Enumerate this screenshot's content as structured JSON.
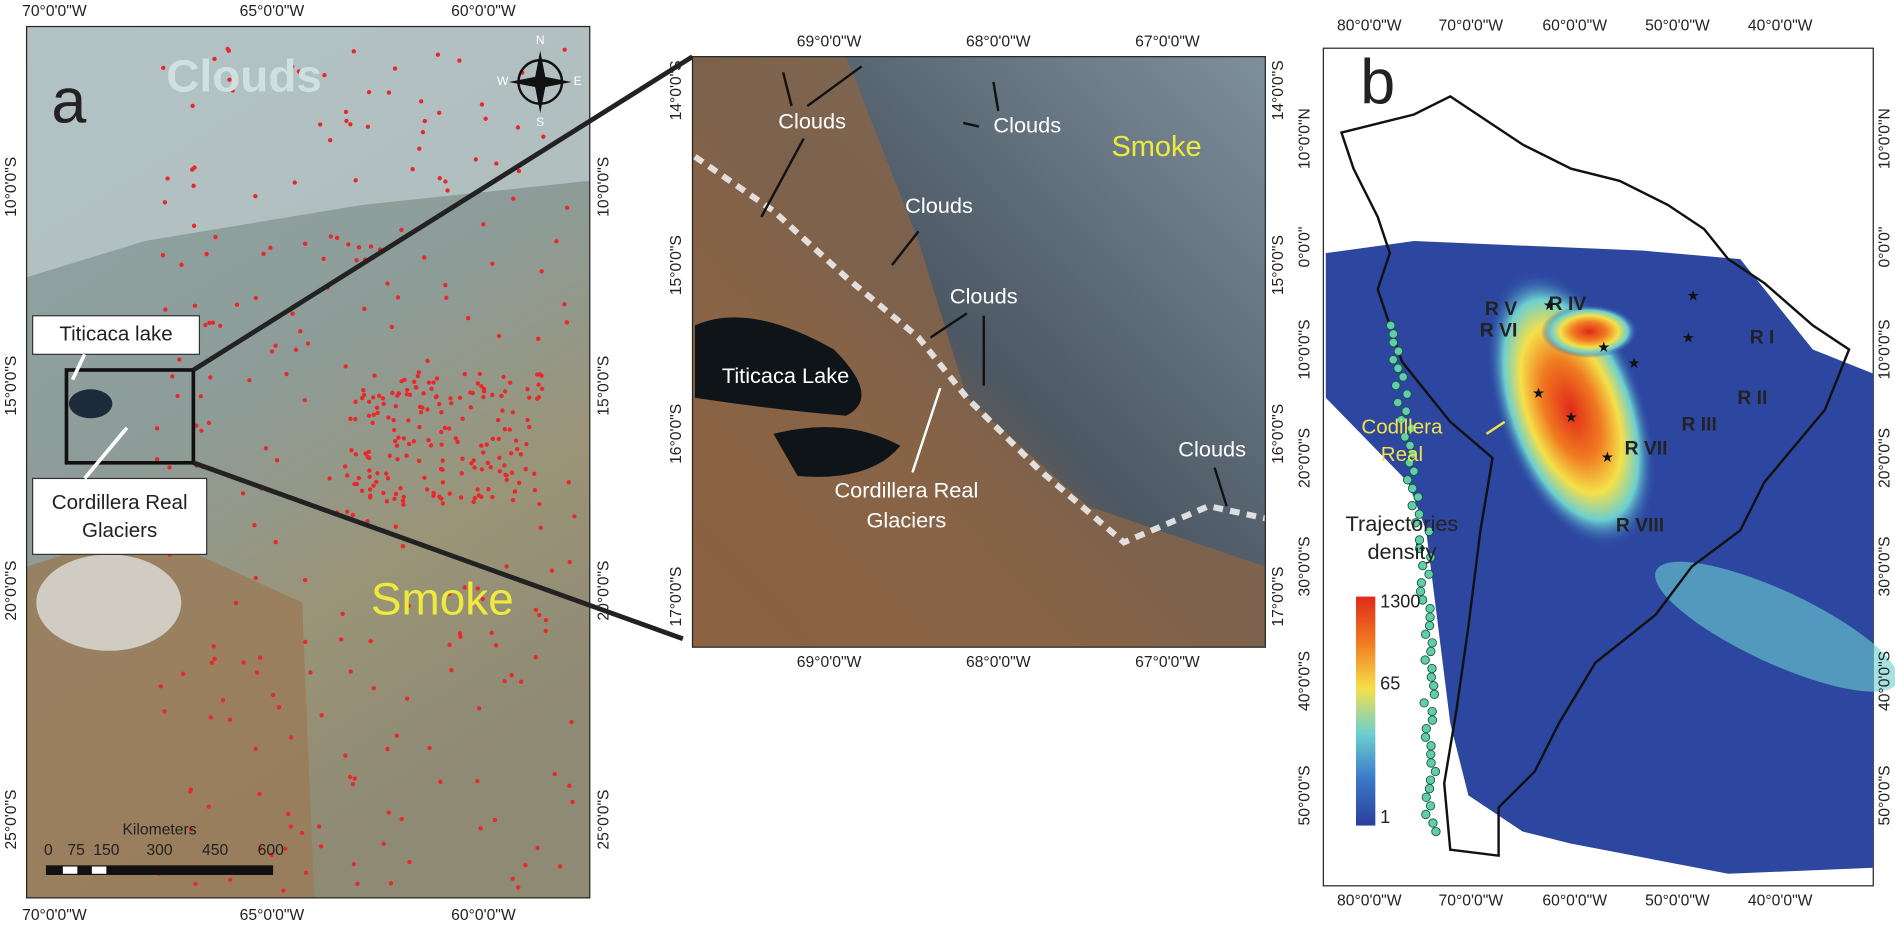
{
  "panel_a": {
    "label": "a",
    "top_axis": [
      "70°0'0\"W",
      "65°0'0\"W",
      "60°0'0\"W"
    ],
    "bottom_axis": [
      "70°0'0\"W",
      "65°0'0\"W",
      "60°0'0\"W"
    ],
    "left_axis": [
      "10°0'0\"S",
      "15°0'0\"S",
      "20°0'0\"S",
      "25°0'0\"S"
    ],
    "right_axis": [
      "10°0'0\"S",
      "15°0'0\"S",
      "20°0'0\"S",
      "25°0'0\"S"
    ],
    "clouds": "Clouds",
    "smoke": "Smoke",
    "lake": "Titicaca lake",
    "glaciers": [
      "Cordillera Real",
      "Glaciers"
    ],
    "compass": [
      "N",
      "E",
      "S",
      "W"
    ],
    "scale_bar": {
      "title": "Kilometers",
      "ticks": [
        0,
        75,
        150,
        300,
        450,
        600
      ]
    }
  },
  "panel_inset": {
    "top_axis": [
      "69°0'0\"W",
      "68°0'0\"W",
      "67°0'0\"W"
    ],
    "bottom_axis": [
      "69°0'0\"W",
      "68°0'0\"W",
      "67°0'0\"W"
    ],
    "left_axis": [
      "14°0'0\"S",
      "15°0'0\"S",
      "16°0'0\"S",
      "17°0'0\"S"
    ],
    "right_axis": [
      "14°0'0\"S",
      "15°0'0\"S",
      "16°0'0\"S",
      "17°0'0\"S"
    ],
    "clouds": [
      "Clouds",
      "Clouds",
      "Clouds",
      "Clouds",
      "Clouds"
    ],
    "smoke": "Smoke",
    "lake": "Titicaca Lake",
    "glaciers": [
      "Cordillera Real",
      "Glaciers"
    ]
  },
  "panel_b": {
    "label": "b",
    "top_axis": [
      "80°0'0\"W",
      "70°0'0\"W",
      "60°0'0\"W",
      "50°0'0\"W",
      "40°0'0\"W"
    ],
    "bottom_axis": [
      "80°0'0\"W",
      "70°0'0\"W",
      "60°0'0\"W",
      "50°0'0\"W",
      "40°0'0\"W"
    ],
    "left_axis": [
      "10°0'0\"N",
      "0°0'0\"",
      "10°0'0\"S",
      "20°0'0\"S",
      "30°0'0\"S",
      "40°0'0\"S",
      "50°0'0\"S"
    ],
    "right_axis": [
      "10°0'0\"N",
      "0°0'0\"",
      "10°0'0\"S",
      "20°0'0\"S",
      "30°0'0\"S",
      "40°0'0\"S",
      "50°0'0\"S"
    ],
    "regions": [
      "R I",
      "R II",
      "R III",
      "R IV",
      "R V",
      "R VI",
      "R VII",
      "R VIII"
    ],
    "cordillera": [
      "Codillera",
      "Real"
    ],
    "legend": {
      "title": [
        "Trajectories",
        "density"
      ],
      "ticks": [
        1300,
        65,
        1
      ]
    }
  }
}
